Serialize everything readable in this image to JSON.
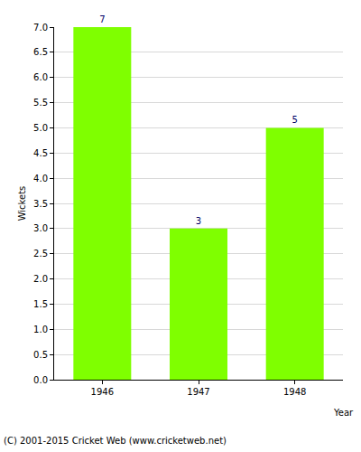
{
  "chart_data": {
    "type": "bar",
    "x_label": "Year",
    "y_label": "Wickets",
    "categories": [
      "1946",
      "1947",
      "1948"
    ],
    "values": [
      7,
      3,
      5
    ],
    "color": "#7fff00",
    "ylim": [
      0,
      7
    ],
    "yticks": [
      {
        "value": 0,
        "label": "0.0"
      },
      0.5,
      {
        "value": 1,
        "label": "1.0"
      },
      1.5,
      {
        "value": 2,
        "label": "2.0"
      },
      2.5,
      {
        "value": 3,
        "label": "3.0"
      },
      3.5,
      {
        "value": 4,
        "label": "4.0"
      },
      4.5,
      {
        "value": 5,
        "label": "5.0"
      },
      5.5,
      {
        "value": 6,
        "label": "6.0"
      },
      6.5,
      {
        "value": 7,
        "label": "7.0"
      }
    ],
    "grid": true,
    "data_labels": true,
    "annotations": [
      "(C) 2001-2015 Cricket Web (www.cricketweb.net)"
    ]
  }
}
